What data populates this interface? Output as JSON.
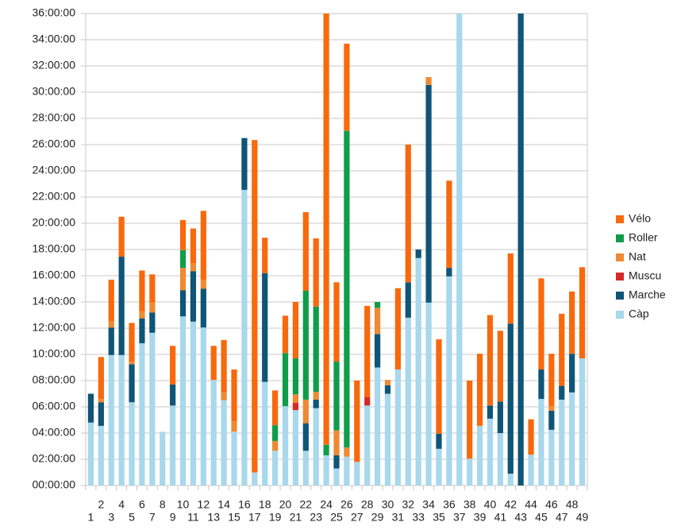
{
  "chart_data": {
    "type": "stacked-bar",
    "categories": [
      "1",
      "2",
      "3",
      "4",
      "5",
      "6",
      "7",
      "8",
      "9",
      "10",
      "11",
      "12",
      "13",
      "14",
      "15",
      "16",
      "17",
      "18",
      "19",
      "20",
      "21",
      "22",
      "23",
      "24",
      "25",
      "26",
      "27",
      "28",
      "29",
      "30",
      "31",
      "32",
      "33",
      "34",
      "35",
      "36",
      "37",
      "38",
      "39",
      "40",
      "41",
      "42",
      "43",
      "44",
      "45",
      "46",
      "47",
      "48",
      "49"
    ],
    "series": [
      {
        "name": "Càp",
        "color": "#a8d8ec",
        "values": [
          4.8,
          4.55,
          9.95,
          9.95,
          6.35,
          10.85,
          11.65,
          4.1,
          6.1,
          12.9,
          12.5,
          12.05,
          8.05,
          6.5,
          4.1,
          22.55,
          1.0,
          7.9,
          2.65,
          6.05,
          5.75,
          2.65,
          5.9,
          2.3,
          1.3,
          2.2,
          1.8,
          6.1,
          9.0,
          7.0,
          8.85,
          12.8,
          17.35,
          13.95,
          2.8,
          15.95,
          36,
          2.05,
          4.55,
          5.1,
          4.0,
          0.9,
          0,
          2.35,
          6.6,
          4.25,
          6.55,
          7.1,
          9.7
        ]
      },
      {
        "name": "Marche",
        "color": "#0e5577",
        "values": [
          2.2,
          1.8,
          2.1,
          7.5,
          2.9,
          1.9,
          1.55,
          0,
          1.6,
          2.0,
          3.85,
          2.95,
          0,
          0,
          0,
          3.95,
          0,
          8.3,
          0,
          0,
          0,
          2.1,
          0.65,
          0,
          1.0,
          0,
          0,
          0,
          2.55,
          0.65,
          0,
          2.7,
          0.65,
          16.6,
          1.15,
          0.65,
          0,
          0,
          0,
          1.0,
          2.4,
          11.45,
          36,
          0,
          2.25,
          1.45,
          1.05,
          2.95,
          0
        ]
      },
      {
        "name": "Muscu",
        "color": "#d42a2a",
        "values": [
          0,
          0,
          0,
          0,
          0,
          0,
          0,
          0,
          0,
          0,
          0,
          0,
          0,
          0,
          0,
          0,
          0,
          0,
          0,
          0,
          0.55,
          0,
          0,
          0,
          0,
          0,
          0,
          0.65,
          0,
          0,
          0,
          0,
          0,
          0,
          0,
          0,
          0,
          0,
          0,
          0,
          0,
          0,
          0,
          0,
          0,
          0,
          0,
          0,
          0
        ]
      },
      {
        "name": "Nat",
        "color": "#ee8a33",
        "values": [
          0,
          0.25,
          0.5,
          0,
          0.2,
          0.55,
          0.75,
          0,
          0,
          1.7,
          0.6,
          0.7,
          0,
          0.6,
          0.8,
          0,
          0,
          0,
          0.75,
          0,
          0.65,
          1.8,
          0.6,
          0,
          1.9,
          0.7,
          0,
          0,
          2.0,
          0.4,
          0,
          0,
          0,
          0.6,
          0,
          0,
          0,
          0,
          0,
          0,
          0,
          0,
          0,
          0,
          0,
          0.35,
          0,
          0,
          0
        ]
      },
      {
        "name": "Roller",
        "color": "#0f9d4a",
        "values": [
          0,
          0,
          0,
          0,
          0,
          0,
          0,
          0,
          0,
          1.35,
          0,
          0,
          0,
          0,
          0,
          0,
          0,
          0,
          1.2,
          4.05,
          2.75,
          8.3,
          6.5,
          0.8,
          5.25,
          24.15,
          0,
          0,
          0.45,
          0,
          0,
          0,
          0,
          0,
          0,
          0,
          0,
          0,
          0,
          0,
          0,
          0,
          0,
          0,
          0,
          0,
          0,
          0,
          0
        ]
      },
      {
        "name": "Vélo",
        "color": "#f8690d",
        "values": [
          0,
          3.2,
          3.15,
          3.05,
          2.95,
          3.1,
          2.15,
          0,
          2.95,
          2.3,
          2.65,
          5.25,
          2.6,
          4.0,
          3.95,
          0,
          25.35,
          2.7,
          2.65,
          2.85,
          4.3,
          6.0,
          5.2,
          32.9,
          6.05,
          6.65,
          6.2,
          6.95,
          0,
          0,
          6.2,
          10.5,
          0,
          0,
          7.2,
          6.65,
          0,
          5.95,
          5.5,
          6.9,
          5.4,
          5.35,
          0,
          2.7,
          6.95,
          4.0,
          5.5,
          4.75,
          6.95
        ]
      }
    ],
    "ylim": [
      0,
      36
    ],
    "yticks": [
      {
        "value": 0,
        "label": "00:00:00"
      },
      {
        "value": 2,
        "label": "02:00:00"
      },
      {
        "value": 4,
        "label": "04:00:00"
      },
      {
        "value": 6,
        "label": "06:00:00"
      },
      {
        "value": 8,
        "label": "08:00:00"
      },
      {
        "value": 10,
        "label": "10:00:00"
      },
      {
        "value": 12,
        "label": "12:00:00"
      },
      {
        "value": 14,
        "label": "14:00:00"
      },
      {
        "value": 16,
        "label": "16:00:00"
      },
      {
        "value": 18,
        "label": "18:00:00"
      },
      {
        "value": 20,
        "label": "20:00:00"
      },
      {
        "value": 22,
        "label": "22:00:00"
      },
      {
        "value": 24,
        "label": "24:00:00"
      },
      {
        "value": 26,
        "label": "26:00:00"
      },
      {
        "value": 28,
        "label": "28:00:00"
      },
      {
        "value": 30,
        "label": "30:00:00"
      },
      {
        "value": 32,
        "label": "32:00:00"
      },
      {
        "value": 34,
        "label": "34:00:00"
      },
      {
        "value": 36,
        "label": "36:00:00"
      }
    ],
    "grid": true
  }
}
